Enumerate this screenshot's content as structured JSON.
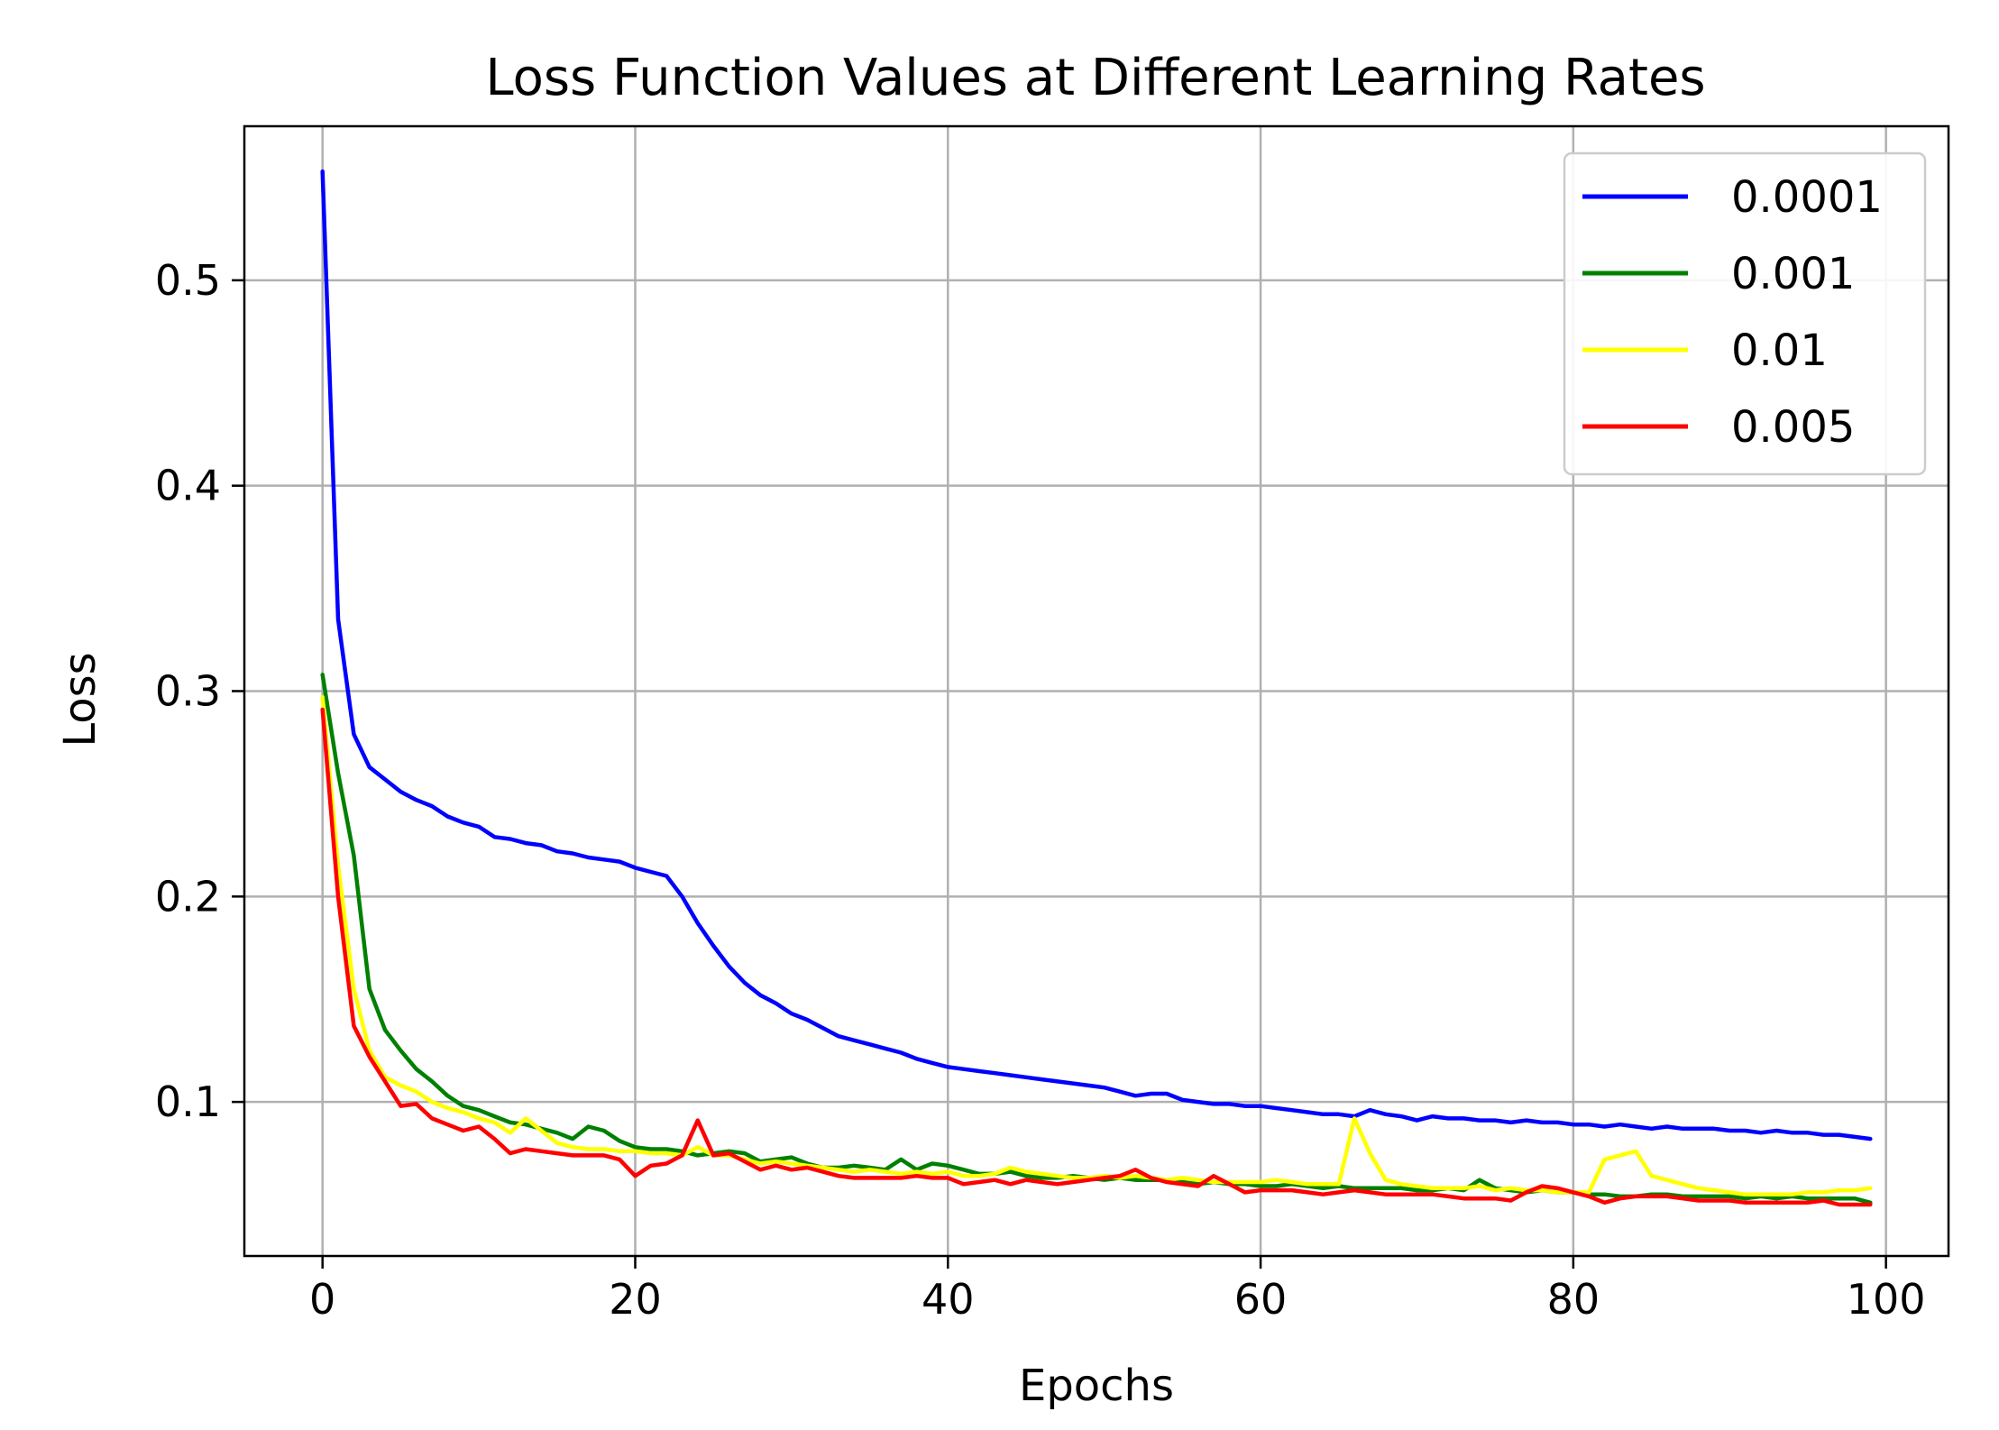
{
  "chart_data": {
    "type": "line",
    "title": "Loss Function Values at Different Learning Rates",
    "xlabel": "Epochs",
    "ylabel": "Loss",
    "xlim": [
      -5,
      104
    ],
    "ylim": [
      0.025,
      0.575
    ],
    "xticks": [
      0,
      20,
      40,
      60,
      80,
      100
    ],
    "xtick_labels": [
      "0",
      "20",
      "40",
      "60",
      "80",
      "100"
    ],
    "yticks": [
      0.1,
      0.2,
      0.3,
      0.4,
      0.5
    ],
    "ytick_labels": [
      "0.1",
      "0.2",
      "0.3",
      "0.4",
      "0.5"
    ],
    "grid": true,
    "legend_position": "top-right",
    "series": [
      {
        "name": "0.0001",
        "color": "#0000ff",
        "x": [
          0,
          1,
          2,
          3,
          4,
          5,
          6,
          7,
          8,
          9,
          10,
          11,
          12,
          13,
          14,
          15,
          16,
          17,
          18,
          19,
          20,
          21,
          22,
          23,
          24,
          25,
          26,
          27,
          28,
          29,
          30,
          31,
          32,
          33,
          34,
          35,
          36,
          37,
          38,
          39,
          40,
          41,
          42,
          43,
          44,
          45,
          46,
          47,
          48,
          49,
          50,
          51,
          52,
          53,
          54,
          55,
          56,
          57,
          58,
          59,
          60,
          61,
          62,
          63,
          64,
          65,
          66,
          67,
          68,
          69,
          70,
          71,
          72,
          73,
          74,
          75,
          76,
          77,
          78,
          79,
          80,
          81,
          82,
          83,
          84,
          85,
          86,
          87,
          88,
          89,
          90,
          91,
          92,
          93,
          94,
          95,
          96,
          97,
          98,
          99
        ],
        "values": [
          0.553,
          0.335,
          0.279,
          0.263,
          0.257,
          0.251,
          0.247,
          0.244,
          0.239,
          0.236,
          0.234,
          0.229,
          0.228,
          0.226,
          0.225,
          0.222,
          0.221,
          0.219,
          0.218,
          0.217,
          0.214,
          0.212,
          0.21,
          0.2,
          0.187,
          0.176,
          0.166,
          0.158,
          0.152,
          0.148,
          0.143,
          0.14,
          0.136,
          0.132,
          0.13,
          0.128,
          0.126,
          0.124,
          0.121,
          0.119,
          0.117,
          0.116,
          0.115,
          0.114,
          0.113,
          0.112,
          0.111,
          0.11,
          0.109,
          0.108,
          0.107,
          0.105,
          0.103,
          0.104,
          0.104,
          0.101,
          0.1,
          0.099,
          0.099,
          0.098,
          0.098,
          0.097,
          0.096,
          0.095,
          0.094,
          0.094,
          0.093,
          0.096,
          0.094,
          0.093,
          0.091,
          0.093,
          0.092,
          0.092,
          0.091,
          0.091,
          0.09,
          0.091,
          0.09,
          0.09,
          0.089,
          0.089,
          0.088,
          0.089,
          0.088,
          0.087,
          0.088,
          0.087,
          0.087,
          0.087,
          0.086,
          0.086,
          0.085,
          0.086,
          0.085,
          0.085,
          0.084,
          0.084,
          0.083,
          0.082
        ]
      },
      {
        "name": "0.001",
        "color": "#008000",
        "x": [
          0,
          1,
          2,
          3,
          4,
          5,
          6,
          7,
          8,
          9,
          10,
          11,
          12,
          13,
          14,
          15,
          16,
          17,
          18,
          19,
          20,
          21,
          22,
          23,
          24,
          25,
          26,
          27,
          28,
          29,
          30,
          31,
          32,
          33,
          34,
          35,
          36,
          37,
          38,
          39,
          40,
          41,
          42,
          43,
          44,
          45,
          46,
          47,
          48,
          49,
          50,
          51,
          52,
          53,
          54,
          55,
          56,
          57,
          58,
          59,
          60,
          61,
          62,
          63,
          64,
          65,
          66,
          67,
          68,
          69,
          70,
          71,
          72,
          73,
          74,
          75,
          76,
          77,
          78,
          79,
          80,
          81,
          82,
          83,
          84,
          85,
          86,
          87,
          88,
          89,
          90,
          91,
          92,
          93,
          94,
          95,
          96,
          97,
          98,
          99
        ],
        "values": [
          0.308,
          0.26,
          0.22,
          0.155,
          0.135,
          0.125,
          0.116,
          0.11,
          0.103,
          0.098,
          0.096,
          0.093,
          0.09,
          0.089,
          0.087,
          0.085,
          0.082,
          0.088,
          0.086,
          0.081,
          0.078,
          0.077,
          0.077,
          0.076,
          0.074,
          0.075,
          0.076,
          0.075,
          0.071,
          0.072,
          0.073,
          0.07,
          0.068,
          0.068,
          0.069,
          0.068,
          0.067,
          0.072,
          0.067,
          0.07,
          0.069,
          0.067,
          0.065,
          0.065,
          0.066,
          0.064,
          0.063,
          0.063,
          0.064,
          0.063,
          0.062,
          0.063,
          0.062,
          0.062,
          0.062,
          0.061,
          0.06,
          0.061,
          0.06,
          0.06,
          0.059,
          0.059,
          0.06,
          0.059,
          0.058,
          0.059,
          0.058,
          0.058,
          0.058,
          0.058,
          0.057,
          0.057,
          0.058,
          0.057,
          0.062,
          0.058,
          0.057,
          0.056,
          0.057,
          0.056,
          0.056,
          0.055,
          0.055,
          0.054,
          0.054,
          0.055,
          0.055,
          0.054,
          0.054,
          0.054,
          0.054,
          0.053,
          0.054,
          0.053,
          0.054,
          0.053,
          0.053,
          0.053,
          0.053,
          0.051
        ]
      },
      {
        "name": "0.01",
        "color": "#ffff00",
        "x": [
          0,
          1,
          2,
          3,
          4,
          5,
          6,
          7,
          8,
          9,
          10,
          11,
          12,
          13,
          14,
          15,
          16,
          17,
          18,
          19,
          20,
          21,
          22,
          23,
          24,
          25,
          26,
          27,
          28,
          29,
          30,
          31,
          32,
          33,
          34,
          35,
          36,
          37,
          38,
          39,
          40,
          41,
          42,
          43,
          44,
          45,
          46,
          47,
          48,
          49,
          50,
          51,
          52,
          53,
          54,
          55,
          56,
          57,
          58,
          59,
          60,
          61,
          62,
          63,
          64,
          65,
          66,
          67,
          68,
          69,
          70,
          71,
          72,
          73,
          74,
          75,
          76,
          77,
          78,
          79,
          80,
          81,
          82,
          83,
          84,
          85,
          86,
          87,
          88,
          89,
          90,
          91,
          92,
          93,
          94,
          95,
          96,
          97,
          98,
          99
        ],
        "values": [
          0.297,
          0.215,
          0.155,
          0.125,
          0.112,
          0.108,
          0.105,
          0.1,
          0.097,
          0.095,
          0.092,
          0.09,
          0.085,
          0.092,
          0.086,
          0.08,
          0.078,
          0.077,
          0.077,
          0.076,
          0.076,
          0.075,
          0.075,
          0.074,
          0.078,
          0.074,
          0.074,
          0.072,
          0.07,
          0.071,
          0.07,
          0.069,
          0.068,
          0.067,
          0.066,
          0.067,
          0.066,
          0.065,
          0.066,
          0.065,
          0.066,
          0.064,
          0.064,
          0.065,
          0.068,
          0.066,
          0.065,
          0.064,
          0.063,
          0.063,
          0.064,
          0.063,
          0.064,
          0.063,
          0.062,
          0.063,
          0.062,
          0.061,
          0.061,
          0.061,
          0.061,
          0.062,
          0.061,
          0.06,
          0.06,
          0.06,
          0.092,
          0.075,
          0.062,
          0.06,
          0.059,
          0.058,
          0.058,
          0.058,
          0.059,
          0.057,
          0.058,
          0.057,
          0.057,
          0.056,
          0.056,
          0.056,
          0.072,
          0.074,
          0.076,
          0.064,
          0.062,
          0.06,
          0.058,
          0.057,
          0.056,
          0.055,
          0.055,
          0.055,
          0.055,
          0.056,
          0.056,
          0.057,
          0.057,
          0.058
        ]
      },
      {
        "name": "0.005",
        "color": "#ff0000",
        "x": [
          0,
          1,
          2,
          3,
          4,
          5,
          6,
          7,
          8,
          9,
          10,
          11,
          12,
          13,
          14,
          15,
          16,
          17,
          18,
          19,
          20,
          21,
          22,
          23,
          24,
          25,
          26,
          27,
          28,
          29,
          30,
          31,
          32,
          33,
          34,
          35,
          36,
          37,
          38,
          39,
          40,
          41,
          42,
          43,
          44,
          45,
          46,
          47,
          48,
          49,
          50,
          51,
          52,
          53,
          54,
          55,
          56,
          57,
          58,
          59,
          60,
          61,
          62,
          63,
          64,
          65,
          66,
          67,
          68,
          69,
          70,
          71,
          72,
          73,
          74,
          75,
          76,
          77,
          78,
          79,
          80,
          81,
          82,
          83,
          84,
          85,
          86,
          87,
          88,
          89,
          90,
          91,
          92,
          93,
          94,
          95,
          96,
          97,
          98,
          99
        ],
        "values": [
          0.291,
          0.2,
          0.137,
          0.122,
          0.11,
          0.098,
          0.099,
          0.092,
          0.089,
          0.086,
          0.088,
          0.082,
          0.075,
          0.077,
          0.076,
          0.075,
          0.074,
          0.074,
          0.074,
          0.072,
          0.064,
          0.069,
          0.07,
          0.074,
          0.091,
          0.074,
          0.075,
          0.071,
          0.067,
          0.069,
          0.067,
          0.068,
          0.066,
          0.064,
          0.063,
          0.063,
          0.063,
          0.063,
          0.064,
          0.063,
          0.063,
          0.06,
          0.061,
          0.062,
          0.06,
          0.062,
          0.061,
          0.06,
          0.061,
          0.062,
          0.063,
          0.064,
          0.067,
          0.063,
          0.061,
          0.06,
          0.059,
          0.064,
          0.06,
          0.056,
          0.057,
          0.057,
          0.057,
          0.056,
          0.055,
          0.056,
          0.057,
          0.056,
          0.055,
          0.055,
          0.055,
          0.055,
          0.054,
          0.053,
          0.053,
          0.053,
          0.052,
          0.056,
          0.059,
          0.058,
          0.056,
          0.054,
          0.051,
          0.053,
          0.054,
          0.054,
          0.054,
          0.053,
          0.052,
          0.052,
          0.052,
          0.051,
          0.051,
          0.051,
          0.051,
          0.051,
          0.052,
          0.05,
          0.05,
          0.05
        ]
      }
    ]
  }
}
